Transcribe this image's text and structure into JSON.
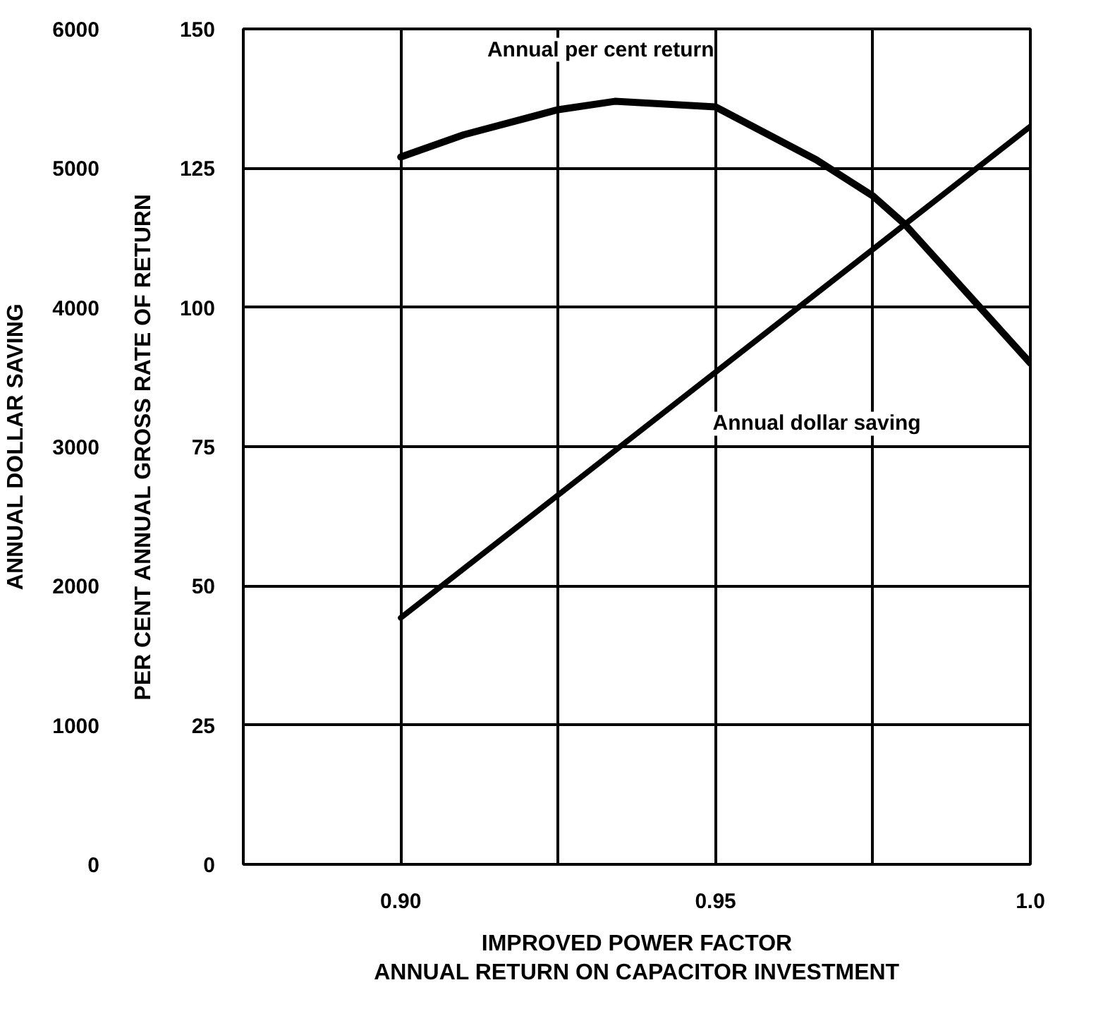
{
  "chart_data": {
    "type": "line",
    "xlabel": "IMPROVED POWER FACTOR\nANNUAL RETURN ON CAPACITOR INVESTMENT",
    "ylabel": "PER CENT ANNUAL GROSS RATE OF RETURN",
    "y2label": "ANNUAL DOLLAR SAVING",
    "series": [
      {
        "name": "Annual per cent return",
        "color": "#000000",
        "x": [
          0.9,
          0.91,
          0.925,
          0.934,
          0.95,
          0.966,
          0.975,
          0.98,
          0.992,
          1.0
        ],
        "values": [
          127,
          131,
          135.5,
          137,
          136,
          126.5,
          120,
          115,
          100,
          90
        ]
      },
      {
        "name": "Annual dollar saving",
        "color": "#000000",
        "axis": "y2",
        "x": [
          0.9,
          1.0
        ],
        "values": [
          1770,
          5300
        ]
      }
    ],
    "xlim": [
      0.875,
      1.0
    ],
    "xticks": [
      {
        "value": 0.9,
        "label": "0.90"
      },
      {
        "value": 0.925,
        "label": null
      },
      {
        "value": 0.95,
        "label": "0.95"
      },
      {
        "value": 0.975,
        "label": null
      },
      {
        "value": 1.0,
        "label": "1.0"
      }
    ],
    "ylim": [
      0,
      150
    ],
    "yticks": [
      0,
      25,
      50,
      75,
      100,
      125,
      150
    ],
    "y2lim": [
      0,
      6000
    ],
    "y2ticks": [
      0,
      1000,
      2000,
      3000,
      4000,
      5000,
      6000
    ],
    "grid": true,
    "marker": "none",
    "line_style": "solid"
  }
}
